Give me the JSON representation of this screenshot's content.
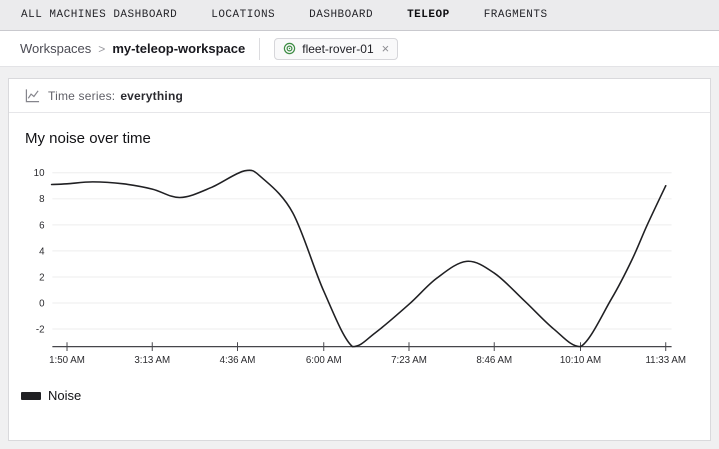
{
  "nav": {
    "tabs": [
      {
        "label": "ALL MACHINES DASHBOARD",
        "active": false
      },
      {
        "label": "LOCATIONS",
        "active": false
      },
      {
        "label": "DASHBOARD",
        "active": false
      },
      {
        "label": "TELEOP",
        "active": true
      },
      {
        "label": "FRAGMENTS",
        "active": false
      }
    ]
  },
  "breadcrumb": {
    "root": "Workspaces",
    "separator": ">",
    "current": "my-teleop-workspace",
    "machine_chip": {
      "label": "fleet-rover-01",
      "close_glyph": "×",
      "icon": "machine-online-rings-icon",
      "icon_color": "#3c8c43"
    }
  },
  "panel": {
    "icon": "timeseries-chart-icon",
    "header_prefix": "Time series:",
    "header_value": "everything"
  },
  "chart_data": {
    "type": "line",
    "title": "My noise over time",
    "xlabel": "",
    "ylabel": "",
    "x_unit": "time of day (minutes since midnight)",
    "x_ticks": [
      {
        "t": 110,
        "label": "1:50 AM"
      },
      {
        "t": 193,
        "label": "3:13 AM"
      },
      {
        "t": 276,
        "label": "4:36 AM"
      },
      {
        "t": 360,
        "label": "6:00 AM"
      },
      {
        "t": 443,
        "label": "7:23 AM"
      },
      {
        "t": 526,
        "label": "8:46 AM"
      },
      {
        "t": 610,
        "label": "10:10 AM"
      },
      {
        "t": 693,
        "label": "11:33 AM"
      }
    ],
    "y_ticks": [
      10,
      8,
      6,
      4,
      2,
      0,
      -2
    ],
    "ylim": [
      -3.35,
      10.75
    ],
    "xlim": [
      95,
      693
    ],
    "grid": "horizontal-only",
    "legend_position": "bottom-left",
    "series": [
      {
        "name": "Noise",
        "color": "#202023",
        "points": [
          [
            95,
            9.1
          ],
          [
            110,
            9.15
          ],
          [
            135,
            9.3
          ],
          [
            165,
            9.15
          ],
          [
            193,
            8.75
          ],
          [
            220,
            8.1
          ],
          [
            250,
            8.85
          ],
          [
            283,
            10.15
          ],
          [
            300,
            9.6
          ],
          [
            330,
            6.9
          ],
          [
            360,
            0.9
          ],
          [
            388,
            -3.35
          ],
          [
            410,
            -2.3
          ],
          [
            443,
            -0.1
          ],
          [
            470,
            1.9
          ],
          [
            499,
            3.2
          ],
          [
            526,
            2.3
          ],
          [
            555,
            0.2
          ],
          [
            584,
            -2.0
          ],
          [
            610,
            -3.35
          ],
          [
            640,
            0.3
          ],
          [
            660,
            3.3
          ],
          [
            675,
            6.0
          ],
          [
            693,
            9.0
          ]
        ]
      }
    ],
    "legend": [
      {
        "label": "Noise",
        "color": "#202023"
      }
    ]
  }
}
